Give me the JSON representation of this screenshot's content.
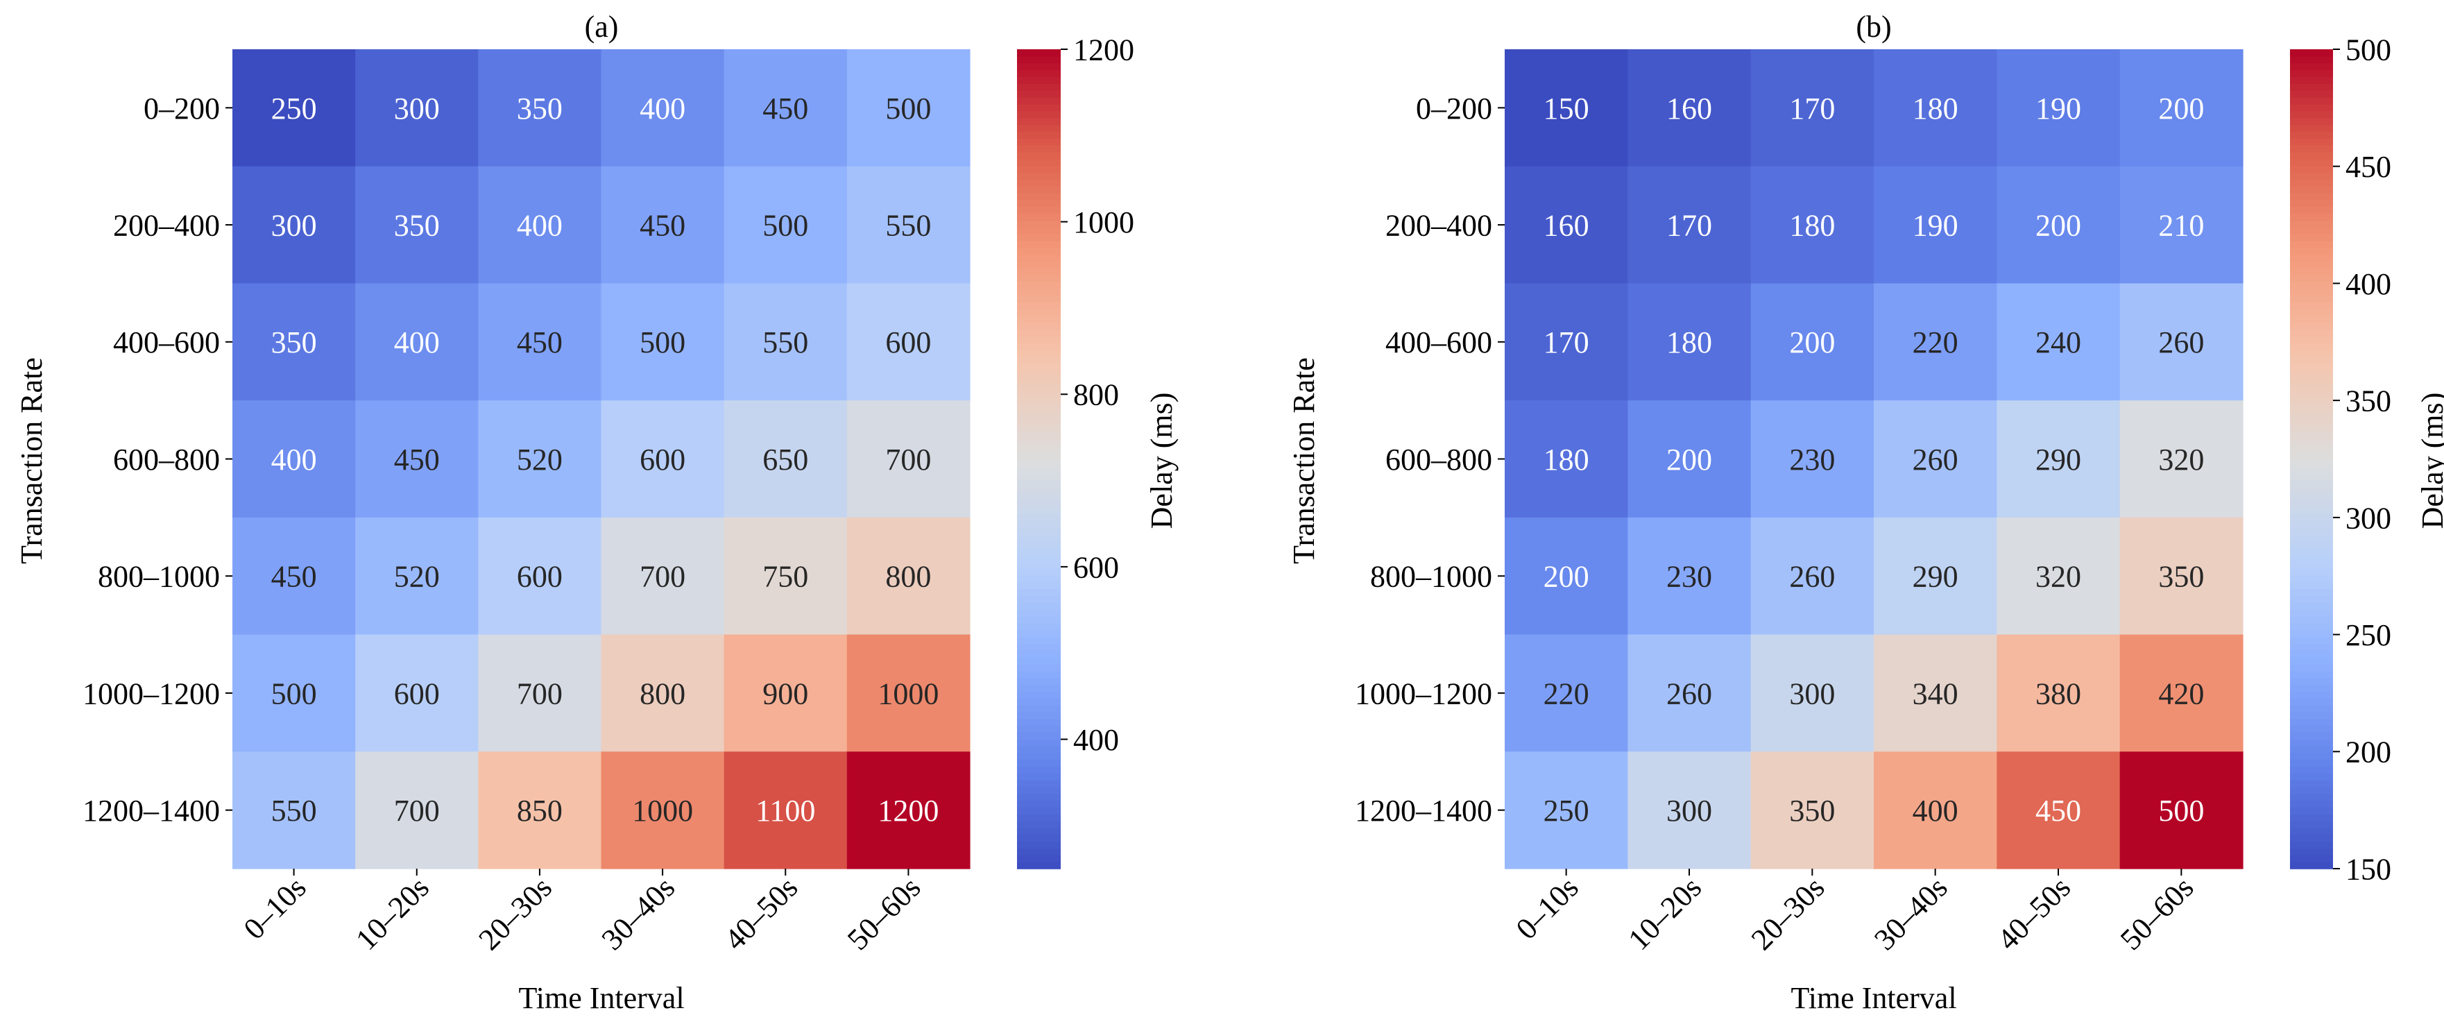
{
  "chart_data": [
    {
      "type": "heatmap",
      "title": "(a)",
      "xlabel": "Time Interval",
      "ylabel": "Transaction Rate",
      "x_categories": [
        "0–10s",
        "10–20s",
        "20–30s",
        "30–40s",
        "40–50s",
        "50–60s"
      ],
      "y_categories": [
        "0–200",
        "200–400",
        "400–600",
        "600–800",
        "800–1000",
        "1000–1200",
        "1200–1400"
      ],
      "values": [
        [
          250,
          300,
          350,
          400,
          450,
          500
        ],
        [
          300,
          350,
          400,
          450,
          500,
          550
        ],
        [
          350,
          400,
          450,
          500,
          550,
          600
        ],
        [
          400,
          450,
          520,
          600,
          650,
          700
        ],
        [
          450,
          520,
          600,
          700,
          750,
          800
        ],
        [
          500,
          600,
          700,
          800,
          900,
          1000
        ],
        [
          550,
          700,
          850,
          1000,
          1100,
          1200
        ]
      ],
      "colorbar": {
        "label": "Delay (ms)",
        "min": 250,
        "max": 1200,
        "ticks": [
          400,
          600,
          800,
          1000,
          1200
        ]
      },
      "colormap": "coolwarm"
    },
    {
      "type": "heatmap",
      "title": "(b)",
      "xlabel": "Time Interval",
      "ylabel": "Transaction Rate",
      "x_categories": [
        "0–10s",
        "10–20s",
        "20–30s",
        "30–40s",
        "40–50s",
        "50–60s"
      ],
      "y_categories": [
        "0–200",
        "200–400",
        "400–600",
        "600–800",
        "800–1000",
        "1000–1200",
        "1200–1400"
      ],
      "values": [
        [
          150,
          160,
          170,
          180,
          190,
          200
        ],
        [
          160,
          170,
          180,
          190,
          200,
          210
        ],
        [
          170,
          180,
          200,
          220,
          240,
          260
        ],
        [
          180,
          200,
          230,
          260,
          290,
          320
        ],
        [
          200,
          230,
          260,
          290,
          320,
          350
        ],
        [
          220,
          260,
          300,
          340,
          380,
          420
        ],
        [
          250,
          300,
          350,
          400,
          450,
          500
        ]
      ],
      "colorbar": {
        "label": "Delay (ms)",
        "min": 150,
        "max": 500,
        "ticks": [
          150,
          200,
          250,
          300,
          350,
          400,
          450,
          500
        ]
      },
      "colormap": "coolwarm"
    }
  ],
  "colormap_stops": [
    "#3b4cc0",
    "#6282ea",
    "#8db0fe",
    "#b8d0f9",
    "#dddddd",
    "#f5c4ac",
    "#f49a7b",
    "#de604d",
    "#b40426"
  ]
}
